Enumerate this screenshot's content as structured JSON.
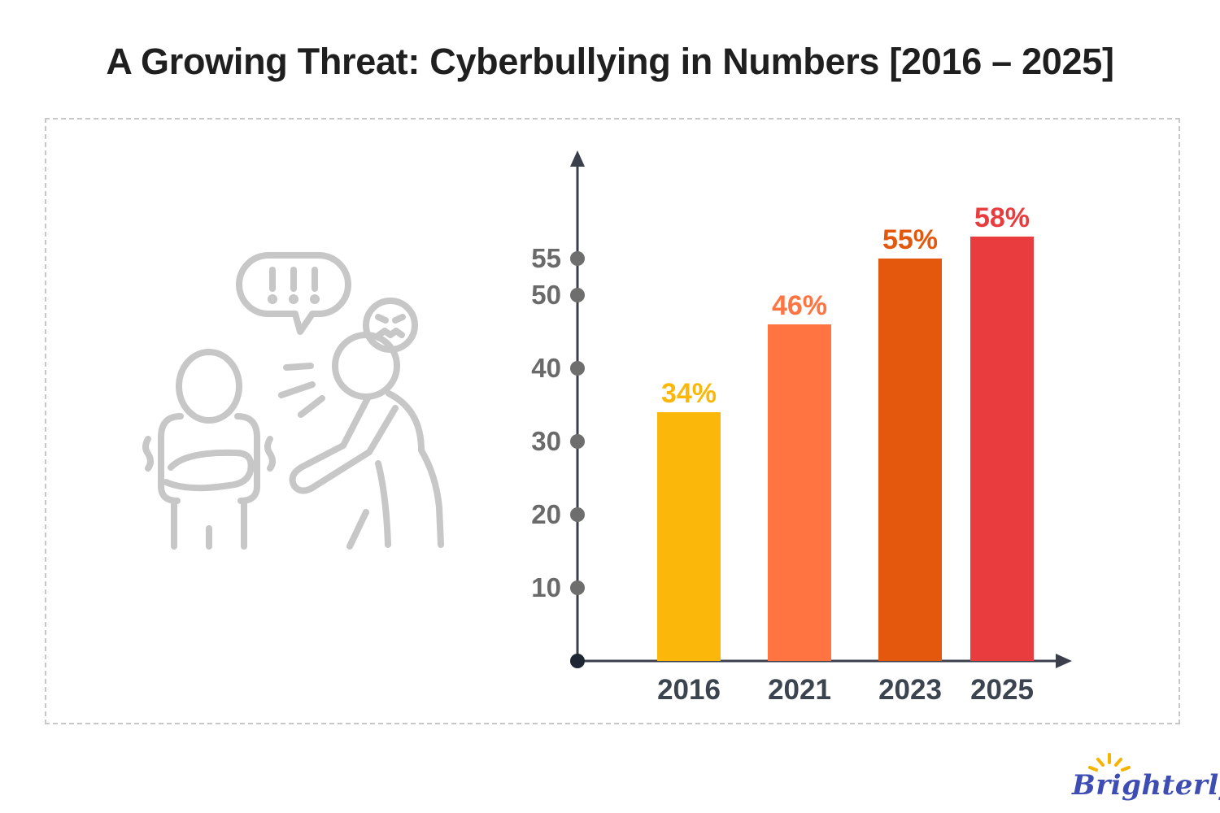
{
  "header": {
    "title": "A Growing Threat: Cyberbullying in Numbers [2016 – 2025]"
  },
  "illustration": {
    "icon": "bullying-people-icon",
    "speech_text": "!!!"
  },
  "brand": {
    "logo_text": "Brighterly",
    "logo_color": "#3d4db3",
    "sun_color": "#f6b300"
  },
  "chart_data": {
    "type": "bar",
    "title": "A Growing Threat: Cyberbullying in Numbers [2016 – 2025]",
    "xlabel": "",
    "ylabel": "",
    "categories": [
      "2016",
      "2021",
      "2023",
      "2025"
    ],
    "values": [
      34,
      46,
      55,
      58
    ],
    "value_labels": [
      "34%",
      "46%",
      "55%",
      "58%"
    ],
    "colors": [
      "#fbb80b",
      "#ff7441",
      "#e4580e",
      "#e83c3e"
    ],
    "yticks": [
      10,
      20,
      30,
      40,
      50,
      55
    ],
    "ylim": [
      0,
      60
    ],
    "grid": false,
    "legend": "none",
    "axis_color": "#3a3f4b",
    "tick_dot_color": "#6e6e6e",
    "tick_label_color": "#6a6a6a",
    "category_label_color": "#3c4450"
  }
}
